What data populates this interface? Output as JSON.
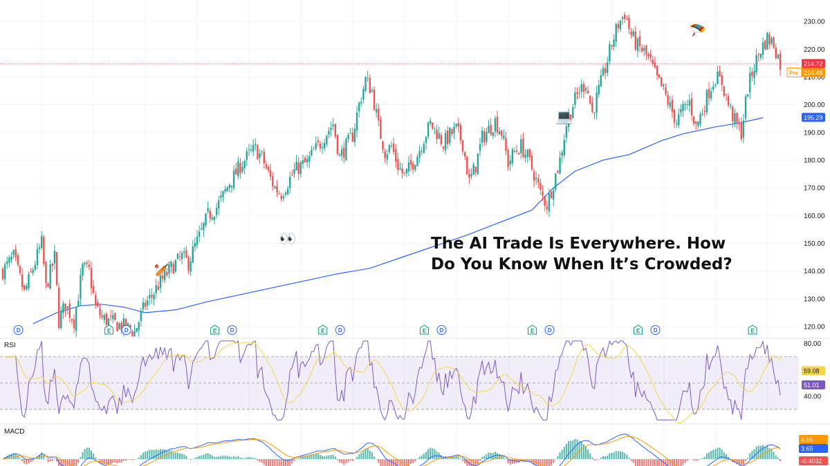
{
  "headline": {
    "line1": "The AI Trade Is Everywhere. How",
    "line2": "Do You Know When It’s Crowded?"
  },
  "colors": {
    "up": "#26a69a",
    "down": "#ef5350",
    "ma": "#2962ff",
    "rsi": "#7e57c2",
    "rsi_ma": "#f5d547",
    "macd": "#2962ff",
    "signal": "#ff9800",
    "grid": "#f0f3fa",
    "last_price": "#f23645",
    "pre_market": "#ff9800",
    "ma_badge": "#2962ff",
    "rsi_badge_signal": "#f5d547",
    "rsi_badge": "#7e57c2"
  },
  "chart_data": [
    {
      "type": "line",
      "subtype": "candlestick",
      "title": "",
      "y_axis": {
        "ticks": [
          "230.00",
          "220.00",
          "210.00",
          "200.00",
          "190.00",
          "180.00",
          "170.00",
          "160.00",
          "150.00",
          "140.00",
          "130.00",
          "120.00"
        ],
        "range": [
          117,
          237
        ]
      },
      "price_badges": [
        {
          "label": "",
          "value": "214.72",
          "color_key": "last_price"
        },
        {
          "label": "Pre",
          "value": "214.48",
          "color_key": "pre_market"
        },
        {
          "label": "",
          "value": "195.29",
          "color_key": "ma_badge"
        }
      ],
      "close_path": [
        [
          0,
          140
        ],
        [
          5,
          145
        ],
        [
          10,
          132
        ],
        [
          14,
          141
        ],
        [
          18,
          150
        ],
        [
          20,
          134
        ],
        [
          24,
          145
        ],
        [
          26,
          122
        ],
        [
          29,
          128
        ],
        [
          33,
          122
        ],
        [
          37,
          141
        ],
        [
          40,
          140
        ],
        [
          43,
          127
        ],
        [
          46,
          123
        ],
        [
          49,
          122
        ],
        [
          52,
          121
        ],
        [
          56,
          120
        ],
        [
          59,
          119
        ],
        [
          61,
          118
        ],
        [
          64,
          124
        ],
        [
          66,
          128
        ],
        [
          69,
          131
        ],
        [
          72,
          135
        ],
        [
          76,
          139
        ],
        [
          79,
          142
        ],
        [
          83,
          145
        ],
        [
          86,
          143
        ],
        [
          89,
          149
        ],
        [
          92,
          154
        ],
        [
          95,
          160
        ],
        [
          99,
          163
        ],
        [
          102,
          167
        ],
        [
          105,
          172
        ],
        [
          107,
          174
        ],
        [
          110,
          178
        ],
        [
          114,
          182
        ],
        [
          117,
          184
        ],
        [
          120,
          181
        ],
        [
          123,
          175
        ],
        [
          126,
          170
        ],
        [
          129,
          168
        ],
        [
          132,
          172
        ],
        [
          135,
          176
        ],
        [
          138,
          178
        ],
        [
          141,
          179
        ],
        [
          144,
          183
        ],
        [
          147,
          186
        ],
        [
          150,
          190
        ],
        [
          153,
          193
        ],
        [
          156,
          181
        ],
        [
          159,
          185
        ],
        [
          162,
          189
        ],
        [
          165,
          200
        ],
        [
          168,
          209
        ],
        [
          171,
          205
        ],
        [
          174,
          192
        ],
        [
          177,
          183
        ],
        [
          180,
          185
        ],
        [
          183,
          178
        ],
        [
          186,
          174
        ],
        [
          189,
          178
        ],
        [
          192,
          182
        ],
        [
          195,
          188
        ],
        [
          198,
          193
        ],
        [
          201,
          190
        ],
        [
          204,
          186
        ],
        [
          207,
          189
        ],
        [
          210,
          191
        ],
        [
          213,
          186
        ],
        [
          216,
          172
        ],
        [
          219,
          178
        ],
        [
          222,
          188
        ],
        [
          225,
          191
        ],
        [
          228,
          194
        ],
        [
          231,
          190
        ],
        [
          234,
          179
        ],
        [
          237,
          183
        ],
        [
          240,
          185
        ],
        [
          243,
          181
        ],
        [
          246,
          175
        ],
        [
          249,
          168
        ],
        [
          252,
          164
        ],
        [
          255,
          172
        ],
        [
          258,
          180
        ],
        [
          261,
          193
        ],
        [
          264,
          200
        ],
        [
          267,
          205
        ],
        [
          270,
          208
        ],
        [
          273,
          197
        ],
        [
          276,
          205
        ],
        [
          279,
          213
        ],
        [
          282,
          222
        ],
        [
          285,
          229
        ],
        [
          288,
          233
        ],
        [
          291,
          225
        ],
        [
          294,
          221
        ],
        [
          297,
          219
        ],
        [
          300,
          215
        ],
        [
          303,
          209
        ],
        [
          306,
          205
        ],
        [
          309,
          199
        ],
        [
          312,
          194
        ],
        [
          315,
          198
        ],
        [
          318,
          201
        ],
        [
          321,
          192
        ],
        [
          324,
          198
        ],
        [
          327,
          205
        ],
        [
          330,
          210
        ],
        [
          333,
          208
        ],
        [
          336,
          200
        ],
        [
          339,
          194
        ],
        [
          342,
          190
        ],
        [
          345,
          206
        ],
        [
          348,
          214
        ],
        [
          351,
          220
        ],
        [
          354,
          224
        ],
        [
          357,
          222
        ],
        [
          360,
          214.72
        ]
      ],
      "ma_path": [
        [
          14,
          121
        ],
        [
          25,
          125
        ],
        [
          36,
          127.5
        ],
        [
          46,
          128
        ],
        [
          56,
          127
        ],
        [
          66,
          125
        ],
        [
          80,
          126
        ],
        [
          95,
          129
        ],
        [
          110,
          131.5
        ],
        [
          125,
          134
        ],
        [
          140,
          136.5
        ],
        [
          155,
          139
        ],
        [
          170,
          141
        ],
        [
          185,
          145
        ],
        [
          200,
          149
        ],
        [
          215,
          153
        ],
        [
          230,
          157.5
        ],
        [
          245,
          162
        ],
        [
          255,
          170
        ],
        [
          265,
          176
        ],
        [
          278,
          180
        ],
        [
          290,
          182
        ],
        [
          305,
          187
        ],
        [
          315,
          189.5
        ],
        [
          330,
          192
        ],
        [
          342,
          193.5
        ],
        [
          352,
          195.29
        ]
      ],
      "ma_label": "195.29",
      "events": [
        {
          "kind": "dividend",
          "letter": "D",
          "x": 4
        },
        {
          "kind": "earnings",
          "letter": "E",
          "x": 46
        },
        {
          "kind": "dividend",
          "letter": "D",
          "x": 54
        },
        {
          "kind": "earnings",
          "letter": "E",
          "x": 95
        },
        {
          "kind": "dividend",
          "letter": "D",
          "x": 103
        },
        {
          "kind": "earnings",
          "letter": "E",
          "x": 145
        },
        {
          "kind": "dividend",
          "letter": "D",
          "x": 153
        },
        {
          "kind": "earnings",
          "letter": "E",
          "x": 192
        },
        {
          "kind": "dividend",
          "letter": "D",
          "x": 200
        },
        {
          "kind": "earnings",
          "letter": "E",
          "x": 242
        },
        {
          "kind": "dividend",
          "letter": "D",
          "x": 250
        },
        {
          "kind": "earnings",
          "letter": "E",
          "x": 291
        },
        {
          "kind": "dividend",
          "letter": "D",
          "x": 299
        },
        {
          "kind": "earnings",
          "letter": "E",
          "x": 344
        }
      ],
      "emoji_icons": [
        {
          "name": "cricket-bat-icon",
          "glyph": "🏏",
          "x": 70,
          "y": 139
        },
        {
          "name": "eyes-icon",
          "glyph": "👀",
          "x": 128,
          "y": 150
        },
        {
          "name": "laptop-icon",
          "glyph": "💻",
          "x": 256,
          "y": 194
        },
        {
          "name": "parachute-icon",
          "glyph": "🪂",
          "x": 318,
          "y": 225
        }
      ]
    },
    {
      "type": "line",
      "title": "RSI",
      "y_axis": {
        "ticks": [
          "80.00",
          "40.00"
        ],
        "range": [
          20,
          83
        ]
      },
      "band": [
        30,
        70
      ],
      "midline": 50,
      "series": [
        {
          "name": "",
          "color_key": "rsi",
          "role": "rsi"
        },
        {
          "name": "",
          "color_key": "rsi_ma",
          "role": "signal"
        }
      ],
      "badges": [
        {
          "value": "59.08",
          "color_key": "rsi_badge_signal"
        },
        {
          "value": "51.01",
          "color_key": "rsi_badge"
        }
      ]
    },
    {
      "type": "bar",
      "title": "MACD",
      "badges": [
        {
          "value": "4.06",
          "color_key": "signal"
        },
        {
          "value": "3.65",
          "color_key": "macd"
        },
        {
          "value": "-0.4032",
          "color_key": "down"
        }
      ]
    }
  ]
}
